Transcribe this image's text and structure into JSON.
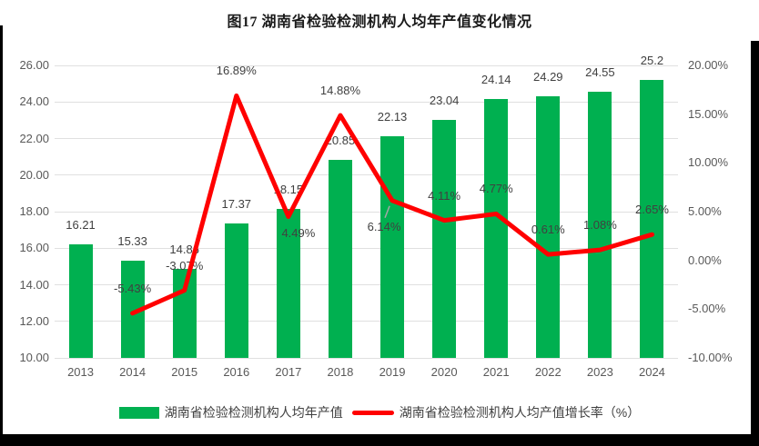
{
  "title": "图17 湖南省检验检测机构人均年产值变化情况",
  "chart_data": {
    "type": "bar+line combo",
    "title": "图17 湖南省检验检测机构人均年产值变化情况",
    "categories": [
      "2013",
      "2014",
      "2015",
      "2016",
      "2017",
      "2018",
      "2019",
      "2020",
      "2021",
      "2022",
      "2023",
      "2024"
    ],
    "series": [
      {
        "name": "湖南省检验检测机构人均年产值",
        "type": "bar",
        "axis": "left",
        "color": "#00B050",
        "values": [
          16.21,
          15.33,
          14.86,
          17.37,
          18.15,
          20.85,
          22.13,
          23.04,
          24.14,
          24.29,
          24.55,
          25.2
        ],
        "labels": [
          "16.21",
          "15.33",
          "14.86",
          "17.37",
          "18.15",
          "20.85",
          "22.13",
          "23.04",
          "24.14",
          "24.29",
          "24.55",
          "25.2"
        ]
      },
      {
        "name": "湖南省检验检测机构人均产值增长率（%）",
        "type": "line",
        "axis": "right",
        "color": "#FF0000",
        "values": [
          null,
          -5.43,
          -3.07,
          16.89,
          4.49,
          14.88,
          6.14,
          4.11,
          4.77,
          0.61,
          1.08,
          2.65
        ],
        "labels": [
          "",
          "-5.43%",
          "-3.07%",
          "16.89%",
          "4.49%",
          "14.88%",
          "6.14%",
          "4.11%",
          "4.77%",
          "0.61%",
          "1.08%",
          "2.65%"
        ],
        "label_placement": [
          "",
          "above",
          "above",
          "above",
          "below-right",
          "above",
          "below-left-leader",
          "above",
          "above",
          "above",
          "above",
          "above"
        ]
      }
    ],
    "left_axis": {
      "min": 10,
      "max": 26,
      "step": 2,
      "ticks": [
        "10.00",
        "12.00",
        "14.00",
        "16.00",
        "18.00",
        "20.00",
        "22.00",
        "24.00",
        "26.00"
      ]
    },
    "right_axis": {
      "min": -10,
      "max": 20,
      "step": 5,
      "ticks": [
        "-10.00%",
        "-5.00%",
        "0.00%",
        "5.00%",
        "10.00%",
        "15.00%",
        "20.00%"
      ]
    },
    "grid": true,
    "legend_position": "bottom"
  },
  "colors": {
    "grid": "#E0E0E0",
    "axis_text": "#595959",
    "data_label_text": "#404040",
    "leader_line": "#A6A6A6"
  }
}
